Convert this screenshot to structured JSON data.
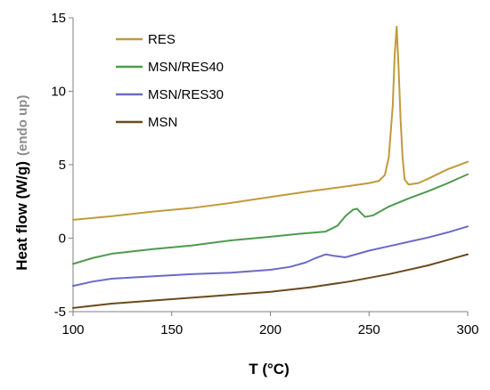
{
  "chart_data": {
    "type": "line",
    "title": "",
    "xlabel": "T (°C)",
    "ylabel": "Heat flow (W/g)",
    "ylabel_note": "(endo up)",
    "xlim": [
      100,
      300
    ],
    "ylim": [
      -5,
      15
    ],
    "xticks": [
      100,
      150,
      200,
      250,
      300
    ],
    "yticks": [
      -5,
      0,
      5,
      10,
      15
    ],
    "grid": false,
    "legend_position": "top-left",
    "series": [
      {
        "name": "RES",
        "color": "#c19a3a",
        "points": [
          [
            100,
            1.25
          ],
          [
            120,
            1.5
          ],
          [
            140,
            1.8
          ],
          [
            160,
            2.05
          ],
          [
            180,
            2.4
          ],
          [
            200,
            2.8
          ],
          [
            220,
            3.2
          ],
          [
            240,
            3.55
          ],
          [
            250,
            3.75
          ],
          [
            255,
            3.9
          ],
          [
            258,
            4.3
          ],
          [
            260,
            5.5
          ],
          [
            262,
            9.0
          ],
          [
            263,
            12.5
          ],
          [
            264,
            14.4
          ],
          [
            265,
            11.5
          ],
          [
            266,
            8.0
          ],
          [
            267,
            5.5
          ],
          [
            268,
            4.0
          ],
          [
            270,
            3.65
          ],
          [
            275,
            3.75
          ],
          [
            280,
            4.05
          ],
          [
            290,
            4.7
          ],
          [
            300,
            5.2
          ]
        ]
      },
      {
        "name": "MSN/RES40",
        "color": "#4e9a4e",
        "points": [
          [
            100,
            -1.75
          ],
          [
            110,
            -1.35
          ],
          [
            120,
            -1.05
          ],
          [
            140,
            -0.75
          ],
          [
            160,
            -0.5
          ],
          [
            180,
            -0.15
          ],
          [
            200,
            0.1
          ],
          [
            215,
            0.3
          ],
          [
            228,
            0.45
          ],
          [
            234,
            0.85
          ],
          [
            238,
            1.5
          ],
          [
            242,
            1.95
          ],
          [
            244,
            2.0
          ],
          [
            246,
            1.7
          ],
          [
            248,
            1.45
          ],
          [
            252,
            1.55
          ],
          [
            260,
            2.15
          ],
          [
            270,
            2.7
          ],
          [
            280,
            3.2
          ],
          [
            290,
            3.75
          ],
          [
            300,
            4.35
          ]
        ]
      },
      {
        "name": "MSN/RES30",
        "color": "#6a6ac8",
        "points": [
          [
            100,
            -3.25
          ],
          [
            110,
            -2.95
          ],
          [
            120,
            -2.75
          ],
          [
            140,
            -2.6
          ],
          [
            160,
            -2.45
          ],
          [
            180,
            -2.35
          ],
          [
            200,
            -2.15
          ],
          [
            210,
            -1.95
          ],
          [
            218,
            -1.65
          ],
          [
            223,
            -1.35
          ],
          [
            228,
            -1.1
          ],
          [
            232,
            -1.2
          ],
          [
            238,
            -1.3
          ],
          [
            242,
            -1.15
          ],
          [
            250,
            -0.85
          ],
          [
            260,
            -0.55
          ],
          [
            270,
            -0.25
          ],
          [
            280,
            0.05
          ],
          [
            290,
            0.4
          ],
          [
            300,
            0.8
          ]
        ]
      },
      {
        "name": "MSN",
        "color": "#6b4a1e",
        "points": [
          [
            100,
            -4.75
          ],
          [
            110,
            -4.6
          ],
          [
            120,
            -4.45
          ],
          [
            140,
            -4.25
          ],
          [
            160,
            -4.05
          ],
          [
            180,
            -3.85
          ],
          [
            200,
            -3.65
          ],
          [
            220,
            -3.35
          ],
          [
            240,
            -2.95
          ],
          [
            260,
            -2.45
          ],
          [
            280,
            -1.85
          ],
          [
            300,
            -1.1
          ]
        ]
      }
    ]
  }
}
